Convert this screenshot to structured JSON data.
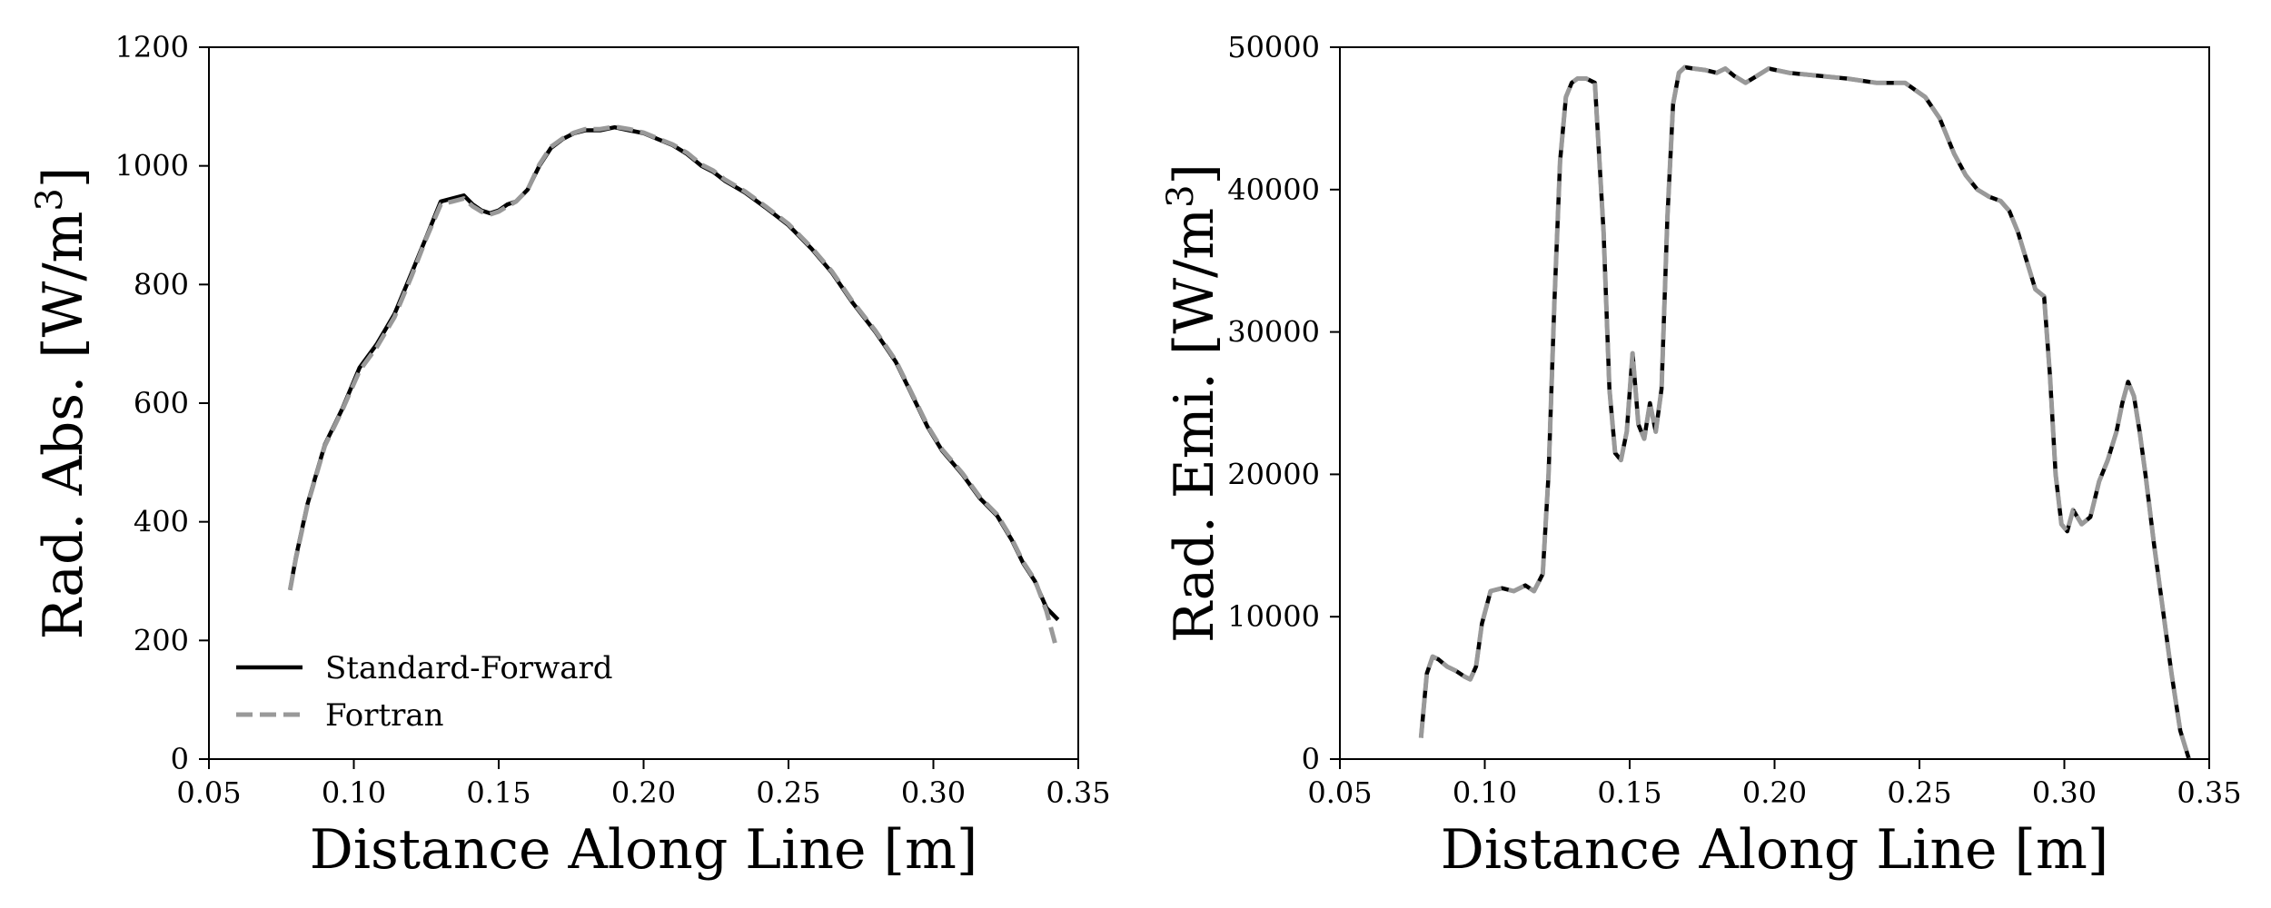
{
  "colors": {
    "standard": "#000000",
    "fortran": "#999999",
    "axes": "#000000",
    "background": "#ffffff"
  },
  "chart_data": [
    {
      "type": "line",
      "xlabel": "Distance Along Line [m]",
      "ylabel_main": "Rad. Abs. [W/m",
      "ylabel_sup": "3",
      "ylabel_end": "]",
      "xlim": [
        0.05,
        0.35
      ],
      "ylim": [
        0,
        1200
      ],
      "xticks": [
        "0.05",
        "0.10",
        "0.15",
        "0.20",
        "0.25",
        "0.30",
        "0.35"
      ],
      "yticks": [
        "0",
        "200",
        "400",
        "600",
        "800",
        "1000",
        "1200"
      ],
      "legend": {
        "position": "lower-left",
        "entries": [
          "Standard-Forward",
          "Fortran"
        ]
      },
      "grid": false,
      "series": [
        {
          "name": "Standard-Forward",
          "style": "solid",
          "x": [
            0.078,
            0.08,
            0.084,
            0.09,
            0.096,
            0.102,
            0.108,
            0.114,
            0.12,
            0.125,
            0.13,
            0.134,
            0.138,
            0.141,
            0.144,
            0.147,
            0.15,
            0.153,
            0.156,
            0.16,
            0.164,
            0.168,
            0.172,
            0.176,
            0.18,
            0.185,
            0.19,
            0.195,
            0.2,
            0.205,
            0.21,
            0.215,
            0.22,
            0.224,
            0.228,
            0.235,
            0.242,
            0.25,
            0.258,
            0.265,
            0.272,
            0.28,
            0.287,
            0.292,
            0.298,
            0.303,
            0.31,
            0.316,
            0.322,
            0.327,
            0.331,
            0.335,
            0.339,
            0.343
          ],
          "y": [
            285,
            340,
            430,
            530,
            590,
            660,
            700,
            750,
            820,
            880,
            940,
            945,
            950,
            935,
            925,
            920,
            925,
            935,
            940,
            960,
            1000,
            1030,
            1045,
            1055,
            1060,
            1060,
            1065,
            1060,
            1055,
            1045,
            1035,
            1020,
            1000,
            990,
            975,
            955,
            930,
            900,
            860,
            820,
            770,
            720,
            670,
            620,
            560,
            520,
            480,
            440,
            410,
            370,
            330,
            300,
            255,
            235
          ]
        },
        {
          "name": "Fortran",
          "style": "dashed",
          "x": [
            0.078,
            0.08,
            0.084,
            0.09,
            0.096,
            0.102,
            0.108,
            0.114,
            0.12,
            0.125,
            0.13,
            0.134,
            0.138,
            0.141,
            0.144,
            0.147,
            0.15,
            0.153,
            0.156,
            0.16,
            0.164,
            0.168,
            0.172,
            0.176,
            0.18,
            0.185,
            0.19,
            0.195,
            0.2,
            0.205,
            0.21,
            0.215,
            0.22,
            0.224,
            0.228,
            0.235,
            0.242,
            0.25,
            0.258,
            0.265,
            0.272,
            0.28,
            0.287,
            0.292,
            0.298,
            0.303,
            0.31,
            0.316,
            0.322,
            0.327,
            0.331,
            0.335,
            0.339,
            0.342
          ],
          "y": [
            285,
            338,
            428,
            528,
            588,
            655,
            695,
            745,
            815,
            878,
            935,
            940,
            945,
            932,
            923,
            918,
            923,
            932,
            940,
            960,
            1002,
            1032,
            1046,
            1056,
            1062,
            1062,
            1066,
            1062,
            1056,
            1046,
            1036,
            1022,
            1002,
            992,
            977,
            957,
            932,
            902,
            862,
            822,
            772,
            722,
            672,
            622,
            562,
            522,
            482,
            442,
            412,
            372,
            332,
            302,
            250,
            195
          ]
        }
      ]
    },
    {
      "type": "line",
      "xlabel": "Distance Along Line [m]",
      "ylabel_main": "Rad. Emi. [W/m",
      "ylabel_sup": "3",
      "ylabel_end": "]",
      "xlim": [
        0.05,
        0.35
      ],
      "ylim": [
        0,
        50000
      ],
      "xticks": [
        "0.05",
        "0.10",
        "0.15",
        "0.20",
        "0.25",
        "0.30",
        "0.35"
      ],
      "yticks": [
        "0",
        "10000",
        "20000",
        "30000",
        "40000",
        "50000"
      ],
      "grid": false,
      "series": [
        {
          "name": "Standard-Forward",
          "style": "solid",
          "x": [
            0.078,
            0.08,
            0.082,
            0.084,
            0.087,
            0.09,
            0.093,
            0.095,
            0.097,
            0.099,
            0.102,
            0.106,
            0.11,
            0.114,
            0.117,
            0.12,
            0.122,
            0.124,
            0.126,
            0.128,
            0.13,
            0.132,
            0.135,
            0.138,
            0.141,
            0.143,
            0.145,
            0.147,
            0.149,
            0.151,
            0.153,
            0.155,
            0.157,
            0.159,
            0.161,
            0.163,
            0.165,
            0.167,
            0.169,
            0.172,
            0.176,
            0.18,
            0.183,
            0.186,
            0.19,
            0.194,
            0.198,
            0.205,
            0.215,
            0.225,
            0.235,
            0.245,
            0.252,
            0.257,
            0.262,
            0.266,
            0.27,
            0.274,
            0.278,
            0.281,
            0.284,
            0.287,
            0.29,
            0.293,
            0.295,
            0.297,
            0.299,
            0.301,
            0.303,
            0.306,
            0.309,
            0.312,
            0.315,
            0.318,
            0.32,
            0.322,
            0.324,
            0.326,
            0.328,
            0.331,
            0.334,
            0.337,
            0.34,
            0.343
          ],
          "y": [
            1500,
            6000,
            7200,
            7000,
            6500,
            6200,
            5800,
            5600,
            6500,
            9500,
            11800,
            12000,
            11800,
            12200,
            11800,
            13000,
            20000,
            32000,
            42000,
            46500,
            47500,
            47800,
            47800,
            47500,
            37000,
            26000,
            21500,
            21000,
            23000,
            28500,
            23500,
            22500,
            25000,
            23000,
            26000,
            38000,
            46000,
            48200,
            48600,
            48500,
            48400,
            48200,
            48500,
            48000,
            47500,
            48000,
            48500,
            48200,
            48000,
            47800,
            47500,
            47500,
            46500,
            45000,
            42500,
            41000,
            40000,
            39500,
            39200,
            38500,
            37000,
            35000,
            33000,
            32500,
            27000,
            20000,
            16500,
            16000,
            17500,
            16500,
            17000,
            19500,
            21000,
            23000,
            25000,
            26500,
            25500,
            23000,
            20000,
            15000,
            10500,
            6000,
            2000,
            0
          ]
        },
        {
          "name": "Fortran",
          "style": "dashed",
          "x": [
            0.078,
            0.08,
            0.082,
            0.084,
            0.087,
            0.09,
            0.093,
            0.095,
            0.097,
            0.099,
            0.102,
            0.106,
            0.11,
            0.114,
            0.117,
            0.12,
            0.122,
            0.124,
            0.126,
            0.128,
            0.13,
            0.132,
            0.135,
            0.138,
            0.141,
            0.143,
            0.145,
            0.147,
            0.149,
            0.151,
            0.153,
            0.155,
            0.157,
            0.159,
            0.161,
            0.163,
            0.165,
            0.167,
            0.169,
            0.172,
            0.176,
            0.18,
            0.183,
            0.186,
            0.19,
            0.194,
            0.198,
            0.205,
            0.215,
            0.225,
            0.235,
            0.245,
            0.252,
            0.257,
            0.262,
            0.266,
            0.27,
            0.274,
            0.278,
            0.281,
            0.284,
            0.287,
            0.29,
            0.293,
            0.295,
            0.297,
            0.299,
            0.301,
            0.303,
            0.306,
            0.309,
            0.312,
            0.315,
            0.318,
            0.32,
            0.322,
            0.324,
            0.326,
            0.328,
            0.331,
            0.334,
            0.337,
            0.34,
            0.343
          ],
          "y": [
            1500,
            6000,
            7200,
            7000,
            6500,
            6200,
            5800,
            5600,
            6500,
            9500,
            11800,
            12000,
            11800,
            12200,
            11800,
            13000,
            20000,
            32000,
            42000,
            46500,
            47500,
            47800,
            47800,
            47500,
            37000,
            26000,
            21500,
            21000,
            23000,
            28500,
            23500,
            22500,
            25000,
            23000,
            26000,
            38000,
            46000,
            48200,
            48600,
            48500,
            48400,
            48200,
            48500,
            48000,
            47500,
            48000,
            48500,
            48200,
            48000,
            47800,
            47500,
            47500,
            46500,
            45000,
            42500,
            41000,
            40000,
            39500,
            39200,
            38500,
            37000,
            35000,
            33000,
            32500,
            27000,
            20000,
            16500,
            16000,
            17500,
            16500,
            17000,
            19500,
            21000,
            23000,
            25000,
            26500,
            25500,
            23000,
            20000,
            15000,
            10500,
            6000,
            2000,
            0
          ]
        }
      ]
    }
  ]
}
